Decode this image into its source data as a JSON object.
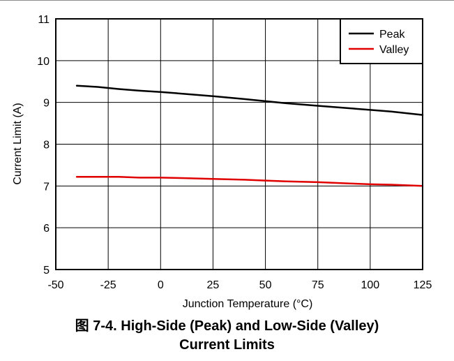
{
  "chart_data": {
    "type": "line",
    "title": "",
    "xlabel": "Junction Temperature (°C)",
    "ylabel": "Current Limit (A)",
    "xlim": [
      -50,
      125
    ],
    "ylim": [
      5,
      11
    ],
    "x_ticks": [
      -50,
      -25,
      0,
      25,
      50,
      75,
      100,
      125
    ],
    "y_ticks": [
      5,
      6,
      7,
      8,
      9,
      10,
      11
    ],
    "grid": true,
    "legend_position": "top-right",
    "series": [
      {
        "name": "Peak",
        "color": "#000000",
        "x": [
          -40,
          -30,
          -20,
          -10,
          0,
          10,
          25,
          40,
          50,
          60,
          75,
          90,
          100,
          110,
          125
        ],
        "values": [
          9.4,
          9.37,
          9.32,
          9.28,
          9.25,
          9.21,
          9.15,
          9.08,
          9.03,
          8.98,
          8.92,
          8.86,
          8.82,
          8.78,
          8.7
        ]
      },
      {
        "name": "Valley",
        "color": "#e00000",
        "x": [
          -40,
          -30,
          -20,
          -10,
          0,
          10,
          25,
          40,
          50,
          60,
          75,
          90,
          100,
          110,
          125
        ],
        "values": [
          7.22,
          7.22,
          7.22,
          7.2,
          7.2,
          7.19,
          7.17,
          7.15,
          7.13,
          7.11,
          7.09,
          7.06,
          7.04,
          7.03,
          7.0
        ]
      }
    ]
  },
  "caption": {
    "line1": "图 7-4. High-Side (Peak) and Low-Side (Valley)",
    "line2": "Current Limits"
  }
}
